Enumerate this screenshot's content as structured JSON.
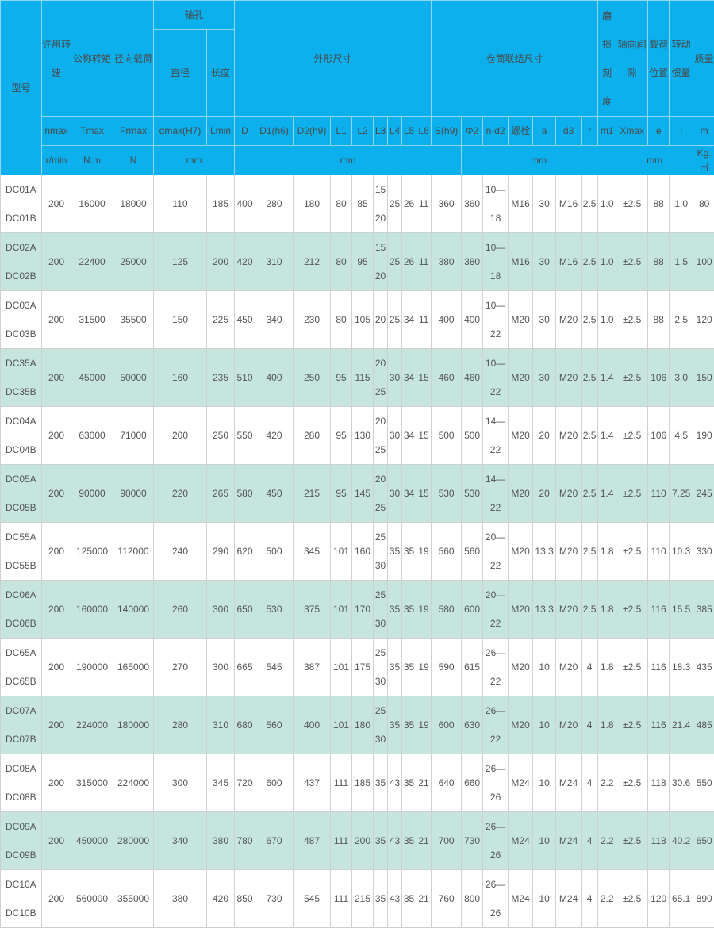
{
  "header": {
    "model": "型号",
    "speed": "许用转\n速",
    "torque": "公称转矩",
    "radial_load": "径向载荷",
    "bore": "轴孔",
    "bore_diameter": "直径",
    "bore_length": "长度",
    "outline": "外形尺寸",
    "drum": "卷筒联结尺寸",
    "wear": "磨\n损\n刻\n度",
    "axial_gap": "轴向间\n隙",
    "load_position": "载荷\n位置",
    "inertia": "转动\n惯量",
    "mass": "质量",
    "codes": [
      "nmax",
      "Tmax",
      "Frmax",
      "dmax(H7)",
      "Lmin",
      "D",
      "D1(h6)",
      "D2(h9)",
      "L1",
      "L2",
      "L3",
      "L4",
      "L5",
      "L6",
      "S(h9)",
      "Φ2",
      "n-d2",
      "螺栓",
      "a",
      "d3",
      "r",
      "m1",
      "Xmax",
      "e",
      "I",
      "m"
    ],
    "units": {
      "speed": "r/min",
      "torque": "N.m",
      "load": "N",
      "bore": "mm",
      "outline": "mm",
      "drum": "mm",
      "wear_gap_pos": "mm",
      "inertia": "Kg.㎡",
      "mass": "Kg"
    }
  },
  "rows": [
    {
      "model": "DC01A\nDC01B",
      "v": [
        "200",
        "16000",
        "18000",
        "110",
        "185",
        "400",
        "280",
        "180",
        "80",
        "85",
        "15\n20",
        "25",
        "26",
        "11",
        "360",
        "360",
        "10—\n18",
        "M16",
        "30",
        "M16",
        "2.5",
        "1.0",
        "±2.5",
        "88",
        "1.0",
        "80"
      ]
    },
    {
      "model": "DC02A\nDC02B",
      "v": [
        "200",
        "22400",
        "25000",
        "125",
        "200",
        "420",
        "310",
        "212",
        "80",
        "95",
        "15\n20",
        "25",
        "26",
        "11",
        "380",
        "380",
        "10—\n18",
        "M16",
        "30",
        "M16",
        "2.5",
        "1.0",
        "±2.5",
        "88",
        "1.5",
        "100"
      ]
    },
    {
      "model": "DC03A\nDC03B",
      "v": [
        "200",
        "31500",
        "35500",
        "150",
        "225",
        "450",
        "340",
        "230",
        "80",
        "105",
        "20",
        "25",
        "34",
        "11",
        "400",
        "400",
        "10—\n22",
        "M20",
        "30",
        "M20",
        "2.5",
        "1.0",
        "±2.5",
        "88",
        "2.5",
        "120"
      ]
    },
    {
      "model": "DC35A\nDC35B",
      "v": [
        "200",
        "45000",
        "50000",
        "160",
        "235",
        "510",
        "400",
        "250",
        "95",
        "115",
        "20\n25",
        "30",
        "34",
        "15",
        "460",
        "460",
        "10—\n22",
        "M20",
        "30",
        "M20",
        "2.5",
        "1.4",
        "±2.5",
        "106",
        "3.0",
        "150"
      ]
    },
    {
      "model": "DC04A\nDC04B",
      "v": [
        "200",
        "63000",
        "71000",
        "200",
        "250",
        "550",
        "420",
        "280",
        "95",
        "130",
        "20\n25",
        "30",
        "34",
        "15",
        "500",
        "500",
        "14—\n22",
        "M20",
        "20",
        "M20",
        "2.5",
        "1.4",
        "±2.5",
        "106",
        "4.5",
        "190"
      ]
    },
    {
      "model": "DC05A\nDC05B",
      "v": [
        "200",
        "90000",
        "90000",
        "220",
        "265",
        "580",
        "450",
        "215",
        "95",
        "145",
        "20\n25",
        "30",
        "34",
        "15",
        "530",
        "530",
        "14—\n22",
        "M20",
        "20",
        "M20",
        "2.5",
        "1.4",
        "±2.5",
        "110",
        "7.25",
        "245"
      ]
    },
    {
      "model": "DC55A\nDC55B",
      "v": [
        "200",
        "125000",
        "112000",
        "240",
        "290",
        "620",
        "500",
        "345",
        "101",
        "160",
        "25\n30",
        "35",
        "35",
        "19",
        "560",
        "560",
        "20—\n22",
        "M20",
        "13.3",
        "M20",
        "2.5",
        "1.8",
        "±2.5",
        "110",
        "10.3",
        "330"
      ]
    },
    {
      "model": "DC06A\nDC06B",
      "v": [
        "200",
        "160000",
        "140000",
        "260",
        "300",
        "650",
        "530",
        "375",
        "101",
        "170",
        "25\n30",
        "35",
        "35",
        "19",
        "580",
        "600",
        "20—\n22",
        "M20",
        "13.3",
        "M20",
        "2.5",
        "1.8",
        "±2.5",
        "116",
        "15.5",
        "385"
      ]
    },
    {
      "model": "DC65A\nDC65B",
      "v": [
        "200",
        "190000",
        "165000",
        "270",
        "300",
        "665",
        "545",
        "387",
        "101",
        "175",
        "25\n30",
        "35",
        "35",
        "19",
        "590",
        "615",
        "26—\n22",
        "M20",
        "10",
        "M20",
        "4",
        "1.8",
        "±2.5",
        "116",
        "18.3",
        "435"
      ]
    },
    {
      "model": "DC07A\nDC07B",
      "v": [
        "200",
        "224000",
        "180000",
        "280",
        "310",
        "680",
        "560",
        "400",
        "101",
        "180",
        "25\n30",
        "35",
        "35",
        "19",
        "600",
        "630",
        "26—\n22",
        "M20",
        "10",
        "M20",
        "4",
        "1.8",
        "±2.5",
        "116",
        "21.4",
        "485"
      ]
    },
    {
      "model": "DC08A\nDC08B",
      "v": [
        "200",
        "315000",
        "224000",
        "300",
        "345",
        "720",
        "600",
        "437",
        "111",
        "185",
        "35",
        "43",
        "35",
        "21",
        "640",
        "660",
        "26—\n26",
        "M24",
        "10",
        "M24",
        "4",
        "2.2",
        "±2.5",
        "118",
        "30.6",
        "550"
      ]
    },
    {
      "model": "DC09A\nDC09B",
      "v": [
        "200",
        "450000",
        "280000",
        "340",
        "380",
        "780",
        "670",
        "487",
        "111",
        "200",
        "35",
        "43",
        "35",
        "21",
        "700",
        "730",
        "26—\n26",
        "M24",
        "10",
        "M24",
        "4",
        "2.2",
        "±2.5",
        "118",
        "40.2",
        "650"
      ]
    },
    {
      "model": "DC10A\nDC10B",
      "v": [
        "200",
        "560000",
        "355000",
        "380",
        "420",
        "850",
        "730",
        "545",
        "111",
        "215",
        "35",
        "43",
        "35",
        "21",
        "760",
        "800",
        "26—\n26",
        "M24",
        "10",
        "M24",
        "4",
        "2.2",
        "±2.5",
        "120",
        "65.1",
        "890"
      ]
    }
  ],
  "colors": {
    "header_bg": "#0bb0ec",
    "alt_row_bg": "#c7e5df",
    "text": "#555555"
  }
}
